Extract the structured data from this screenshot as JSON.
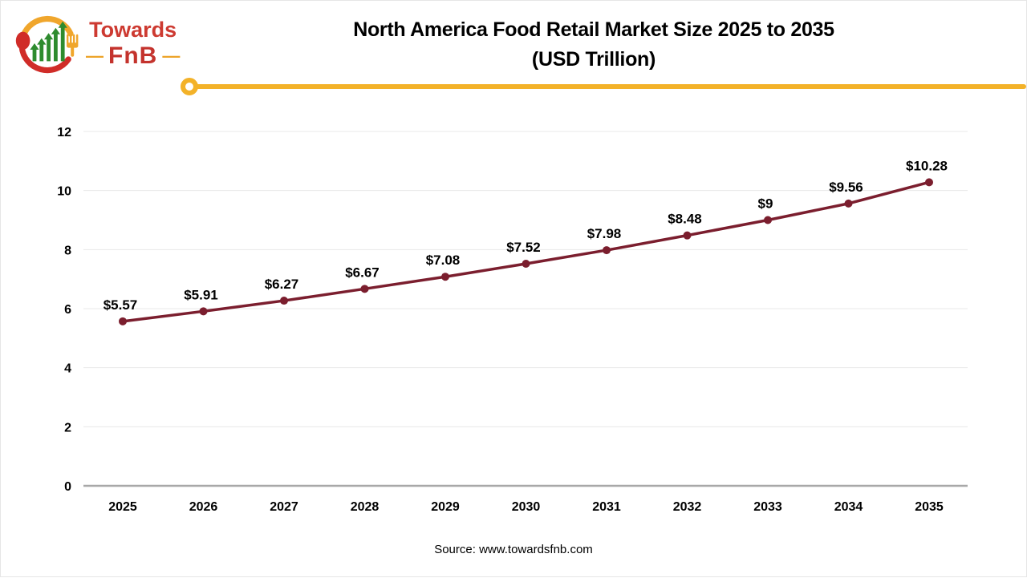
{
  "header": {
    "logo": {
      "brand_line1": "Towards",
      "brand_line2": "FnB",
      "dash": "—",
      "colors": {
        "red": "#cd3a31",
        "gold": "#f0a62c",
        "green": "#2e8b2e"
      }
    },
    "title_line1": "North America Food Retail Market Size 2025 to 2035",
    "title_line2": "(USD Trillion)",
    "divider_color": "#f3b229"
  },
  "chart_data": {
    "type": "line",
    "title": "North America Food Retail Market Size 2025 to 2035 (USD Trillion)",
    "categories": [
      "2025",
      "2026",
      "2027",
      "2028",
      "2029",
      "2030",
      "2031",
      "2032",
      "2033",
      "2034",
      "2035"
    ],
    "values": [
      5.57,
      5.91,
      6.27,
      6.67,
      7.08,
      7.52,
      7.98,
      8.48,
      9,
      9.56,
      10.28
    ],
    "point_labels": [
      "$5.57",
      "$5.91",
      "$6.27",
      "$6.67",
      "$7.08",
      "$7.52",
      "$7.98",
      "$8.48",
      "$9",
      "$9.56",
      "$10.28"
    ],
    "xlabel": "",
    "ylabel": "",
    "ylim": [
      0,
      12
    ],
    "yticks": [
      0,
      2,
      4,
      6,
      8,
      10,
      12
    ],
    "grid": true,
    "legend": "none",
    "line_color": "#7b1e2e",
    "marker_color": "#7b1e2e",
    "gridline_color": "#e8e8e8",
    "axis_line_color": "#a8a8a8",
    "label_color": "#000000"
  },
  "footer": {
    "source": "Source: www.towardsfnb.com"
  }
}
